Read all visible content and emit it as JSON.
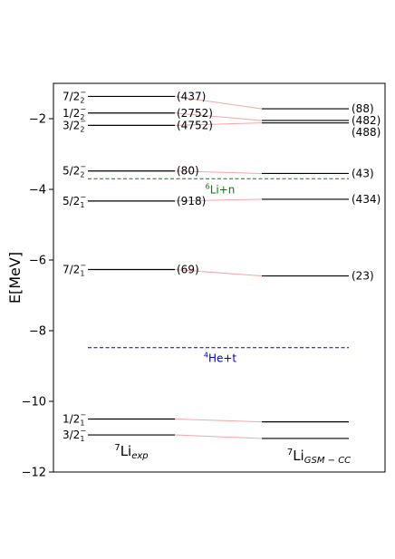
{
  "chart_data": {
    "type": "level-scheme",
    "ylabel": "E[MeV]",
    "ylim": [
      -12,
      -1
    ],
    "yticks": [
      -2,
      -4,
      -6,
      -8,
      -10,
      -12
    ],
    "grid": false,
    "columns": [
      {
        "name": "exp",
        "label": "Li",
        "label_sup": "7",
        "label_sub": "exp",
        "levels": [
          {
            "name": "7/2_2^-",
            "j": "7/2",
            "n": "2",
            "parity": "−",
            "energy": -1.37,
            "width": "(437)"
          },
          {
            "name": "1/2_2^-",
            "j": "1/2",
            "n": "2",
            "parity": "−",
            "energy": -1.84,
            "width": "(2752)"
          },
          {
            "name": "3/2_2^-",
            "j": "3/2",
            "n": "2",
            "parity": "−",
            "energy": -2.19,
            "width": "(4752)"
          },
          {
            "name": "5/2_2^-",
            "j": "5/2",
            "n": "2",
            "parity": "−",
            "energy": -3.48,
            "width": "(80)"
          },
          {
            "name": "5/2_1^-",
            "j": "5/2",
            "n": "1",
            "parity": "−",
            "energy": -4.33,
            "width": "(918)"
          },
          {
            "name": "7/2_1^-",
            "j": "7/2",
            "n": "1",
            "parity": "−",
            "energy": -6.27,
            "width": "(69)"
          },
          {
            "name": "1/2_1^-",
            "j": "1/2",
            "n": "1",
            "parity": "−",
            "energy": -10.5,
            "width": ""
          },
          {
            "name": "3/2_1^-",
            "j": "3/2",
            "n": "1",
            "parity": "−",
            "energy": -10.95,
            "width": ""
          }
        ]
      },
      {
        "name": "gsm",
        "label": "Li",
        "label_sup": "7",
        "label_sub": "GSM − CC",
        "levels": [
          {
            "name": "7/2_2^-",
            "energy": -1.72,
            "width": "(88)"
          },
          {
            "name": "1/2_2^-",
            "energy": -2.05,
            "width": "(482)"
          },
          {
            "name": "3/2_2^-",
            "energy": -2.12,
            "width": "(488)"
          },
          {
            "name": "5/2_2^-",
            "energy": -3.55,
            "width": "(43)"
          },
          {
            "name": "5/2_1^-",
            "energy": -4.28,
            "width": "(434)"
          },
          {
            "name": "7/2_1^-",
            "energy": -6.45,
            "width": "(23)"
          },
          {
            "name": "1/2_1^-",
            "energy": -10.58,
            "width": ""
          },
          {
            "name": "3/2_1^-",
            "energy": -11.05,
            "width": ""
          }
        ]
      }
    ],
    "thresholds": [
      {
        "name": "6Li+n",
        "label_sup": "6",
        "label": "Li+n",
        "energy": -3.7,
        "color": "#008000"
      },
      {
        "name": "4He+t",
        "label_sup": "4",
        "label": "He+t",
        "energy": -8.48,
        "color": "#0000cc"
      }
    ],
    "connector_color": "#f4a6a6",
    "level_color": "#000000"
  }
}
